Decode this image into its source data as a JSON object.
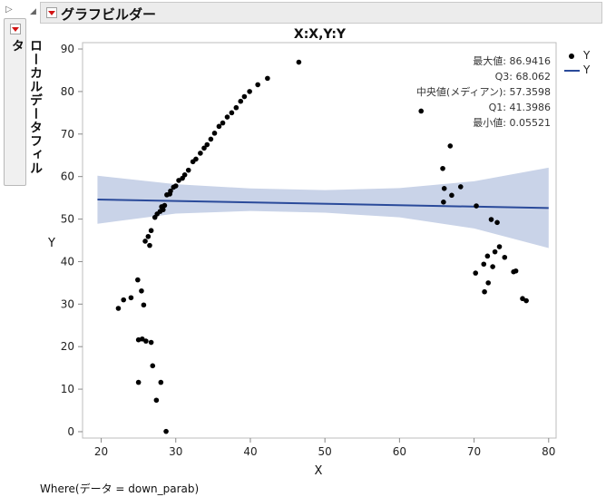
{
  "left_panel": {
    "label": "ローカルデータフィルタ"
  },
  "header": {
    "title": "グラフビルダー"
  },
  "chart_title": "X:X,Y:Y",
  "stats": [
    "最大値: 86.9416",
    "Q3: 68.062",
    "中央値(メディアン): 57.3598",
    "Q1: 41.3986",
    "最小値: 0.05521"
  ],
  "legend": [
    {
      "label": "Y",
      "kind": "points"
    },
    {
      "label": "Y",
      "kind": "line"
    }
  ],
  "where": "Where(データ = down_parab)",
  "colors": {
    "points": "#000000",
    "fit_line": "#2a4a9a",
    "band": "#c9d3e8"
  },
  "chart_data": {
    "type": "scatter",
    "xlabel": "X",
    "ylabel": "Y",
    "xlim": [
      17.5,
      81
    ],
    "ylim": [
      -1.5,
      91.5
    ],
    "xticks": [
      20,
      30,
      40,
      50,
      60,
      70,
      80
    ],
    "yticks": [
      0,
      10,
      20,
      30,
      40,
      50,
      60,
      70,
      80,
      90
    ],
    "grid": false,
    "series": [
      {
        "name": "Y",
        "type": "scatter",
        "points": [
          [
            22.3,
            29
          ],
          [
            23,
            31
          ],
          [
            24,
            31.5
          ],
          [
            24.9,
            35.7
          ],
          [
            25.4,
            33.1
          ],
          [
            25.7,
            29.8
          ],
          [
            25,
            21.6
          ],
          [
            25.5,
            21.8
          ],
          [
            26,
            21.3
          ],
          [
            26.7,
            21
          ],
          [
            26.9,
            15.5
          ],
          [
            25,
            11.6
          ],
          [
            27.4,
            7.4
          ],
          [
            28,
            11.6
          ],
          [
            28.7,
            0.06
          ],
          [
            25.9,
            44.8
          ],
          [
            26.3,
            45.9
          ],
          [
            26.7,
            47.3
          ],
          [
            26.5,
            43.8
          ],
          [
            27.2,
            50.4
          ],
          [
            27.5,
            51.2
          ],
          [
            27.9,
            51.8
          ],
          [
            28.3,
            52.2
          ],
          [
            28.5,
            53.2
          ],
          [
            28.1,
            52.9
          ],
          [
            28.8,
            55.7
          ],
          [
            29.3,
            56.6
          ],
          [
            29.7,
            57.5
          ],
          [
            29.2,
            55.9
          ],
          [
            30,
            57.8
          ],
          [
            30.4,
            59.1
          ],
          [
            30.9,
            59.6
          ],
          [
            31.2,
            60.4
          ],
          [
            31.7,
            61.5
          ],
          [
            32.3,
            63.5
          ],
          [
            32.7,
            64.1
          ],
          [
            33.3,
            65.5
          ],
          [
            33.8,
            66.7
          ],
          [
            34.2,
            67.5
          ],
          [
            34.7,
            68.8
          ],
          [
            35.2,
            70.2
          ],
          [
            35.8,
            71.8
          ],
          [
            36.3,
            72.6
          ],
          [
            36.9,
            74
          ],
          [
            37.5,
            75
          ],
          [
            38.1,
            76.2
          ],
          [
            38.7,
            77.7
          ],
          [
            39.2,
            78.8
          ],
          [
            39.9,
            80
          ],
          [
            41,
            81.6
          ],
          [
            42.3,
            83.1
          ],
          [
            46.5,
            86.9
          ],
          [
            62.9,
            75.4
          ],
          [
            65.8,
            61.9
          ],
          [
            66,
            57.2
          ],
          [
            65.9,
            54
          ],
          [
            66.8,
            67.2
          ],
          [
            67,
            55.6
          ],
          [
            68.2,
            57.6
          ],
          [
            70.3,
            53.1
          ],
          [
            70.2,
            37.3
          ],
          [
            71.4,
            32.9
          ],
          [
            71.3,
            39.4
          ],
          [
            71.9,
            35
          ],
          [
            72.5,
            38.8
          ],
          [
            71.8,
            41.3
          ],
          [
            72.3,
            49.9
          ],
          [
            72.8,
            42.3
          ],
          [
            73.1,
            49.2
          ],
          [
            73.4,
            43.5
          ],
          [
            74.1,
            41
          ],
          [
            75.3,
            37.6
          ],
          [
            75.6,
            37.8
          ],
          [
            76.5,
            31.3
          ],
          [
            77,
            30.8
          ]
        ]
      },
      {
        "name": "Y",
        "type": "line",
        "points": [
          [
            19.5,
            54.6
          ],
          [
            80,
            52.6
          ]
        ]
      }
    ],
    "confidence_band": {
      "upper": [
        [
          19.5,
          60.2
        ],
        [
          30,
          58.2
        ],
        [
          40,
          57.2
        ],
        [
          50,
          56.8
        ],
        [
          60,
          57.3
        ],
        [
          70,
          58.9
        ],
        [
          80,
          62.1
        ]
      ],
      "lower": [
        [
          19.5,
          48.9
        ],
        [
          30,
          51.3
        ],
        [
          40,
          51.9
        ],
        [
          50,
          51.5
        ],
        [
          60,
          50.4
        ],
        [
          70,
          47.8
        ],
        [
          80,
          43.2
        ]
      ]
    }
  }
}
